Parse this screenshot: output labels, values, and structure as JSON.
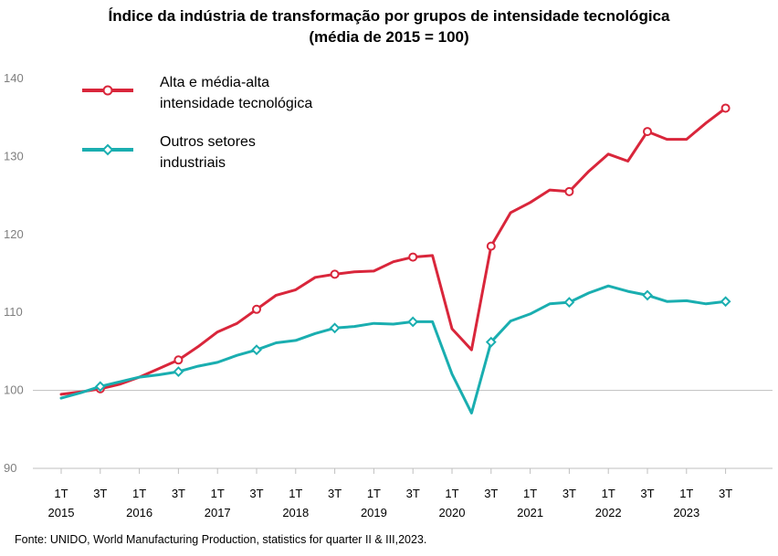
{
  "title": {
    "line1": "Índice da indústria  de transformação  por grupos  de intensidade  tecnológica",
    "line2": "(média de 2015 = 100)"
  },
  "source": "Fonte: UNIDO, World Manufacturing Production, statistics for quarter II & III,2023.",
  "colors": {
    "high_tech": "#d9263b",
    "others": "#1aaeb0",
    "grid": "#bfbfbf",
    "tick": "#7f7f7f"
  },
  "chart_data": {
    "type": "line",
    "title": "Índice da indústria de transformação por grupos de intensidade tecnológica (média de 2015 = 100)",
    "xlabel": "",
    "ylabel": "",
    "ylim": [
      90,
      140
    ],
    "yticks": [
      90,
      100,
      110,
      120,
      130,
      140
    ],
    "grid": {
      "horizontal_at": [
        100
      ]
    },
    "legend_position": "top-left",
    "x": [
      "1T 2015",
      "2T 2015",
      "3T 2015",
      "4T 2015",
      "1T 2016",
      "2T 2016",
      "3T 2016",
      "4T 2016",
      "1T 2017",
      "2T 2017",
      "3T 2017",
      "4T 2017",
      "1T 2018",
      "2T 2018",
      "3T 2018",
      "4T 2018",
      "1T 2019",
      "2T 2019",
      "3T 2019",
      "4T 2019",
      "1T 2020",
      "2T 2020",
      "3T 2020",
      "4T 2020",
      "1T 2021",
      "2T 2021",
      "3T 2021",
      "4T 2021",
      "1T 2022",
      "2T 2022",
      "3T 2022",
      "4T 2022",
      "1T 2023",
      "2T 2023",
      "3T 2023"
    ],
    "x_tick_labels": [
      {
        "index": 0,
        "top": "1T",
        "bottom": "2015"
      },
      {
        "index": 2,
        "top": "3T",
        "bottom": ""
      },
      {
        "index": 4,
        "top": "1T",
        "bottom": "2016"
      },
      {
        "index": 6,
        "top": "3T",
        "bottom": ""
      },
      {
        "index": 8,
        "top": "1T",
        "bottom": "2017"
      },
      {
        "index": 10,
        "top": "3T",
        "bottom": ""
      },
      {
        "index": 12,
        "top": "1T",
        "bottom": "2018"
      },
      {
        "index": 14,
        "top": "3T",
        "bottom": ""
      },
      {
        "index": 16,
        "top": "1T",
        "bottom": "2019"
      },
      {
        "index": 18,
        "top": "3T",
        "bottom": ""
      },
      {
        "index": 20,
        "top": "1T",
        "bottom": "2020"
      },
      {
        "index": 22,
        "top": "3T",
        "bottom": ""
      },
      {
        "index": 24,
        "top": "1T",
        "bottom": "2021"
      },
      {
        "index": 26,
        "top": "3T",
        "bottom": ""
      },
      {
        "index": 28,
        "top": "1T",
        "bottom": "2022"
      },
      {
        "index": 30,
        "top": "3T",
        "bottom": ""
      },
      {
        "index": 32,
        "top": "1T",
        "bottom": "2023"
      },
      {
        "index": 34,
        "top": "3T",
        "bottom": ""
      }
    ],
    "series": [
      {
        "name": "Alta e média-alta intensidade tecnológica",
        "legend_lines": [
          "Alta e média-alta",
          "intensidade tecnológica"
        ],
        "marker": "circle",
        "color": "#d9263b",
        "marker_every": 4,
        "marker_offset": 2,
        "values": [
          99.5,
          99.8,
          100.2,
          100.8,
          101.7,
          102.8,
          103.9,
          105.6,
          107.5,
          108.6,
          110.4,
          112.2,
          112.9,
          114.5,
          114.9,
          115.2,
          115.3,
          116.5,
          117.1,
          117.3,
          107.9,
          105.2,
          118.5,
          122.8,
          124.1,
          125.7,
          125.5,
          128.1,
          130.3,
          129.4,
          133.2,
          132.2,
          132.2,
          134.3,
          136.2
        ]
      },
      {
        "name": "Outros setores industriais",
        "legend_lines": [
          "Outros setores",
          "industriais"
        ],
        "marker": "diamond",
        "color": "#1aaeb0",
        "marker_every": 4,
        "marker_offset": 2,
        "values": [
          99.0,
          99.7,
          100.5,
          101.1,
          101.7,
          102.0,
          102.4,
          103.1,
          103.6,
          104.5,
          105.2,
          106.1,
          106.4,
          107.3,
          108.0,
          108.2,
          108.6,
          108.5,
          108.8,
          108.8,
          102.1,
          97.1,
          106.2,
          108.9,
          109.8,
          111.1,
          111.3,
          112.5,
          113.4,
          112.7,
          112.2,
          111.4,
          111.5,
          111.1,
          111.4
        ]
      }
    ]
  }
}
